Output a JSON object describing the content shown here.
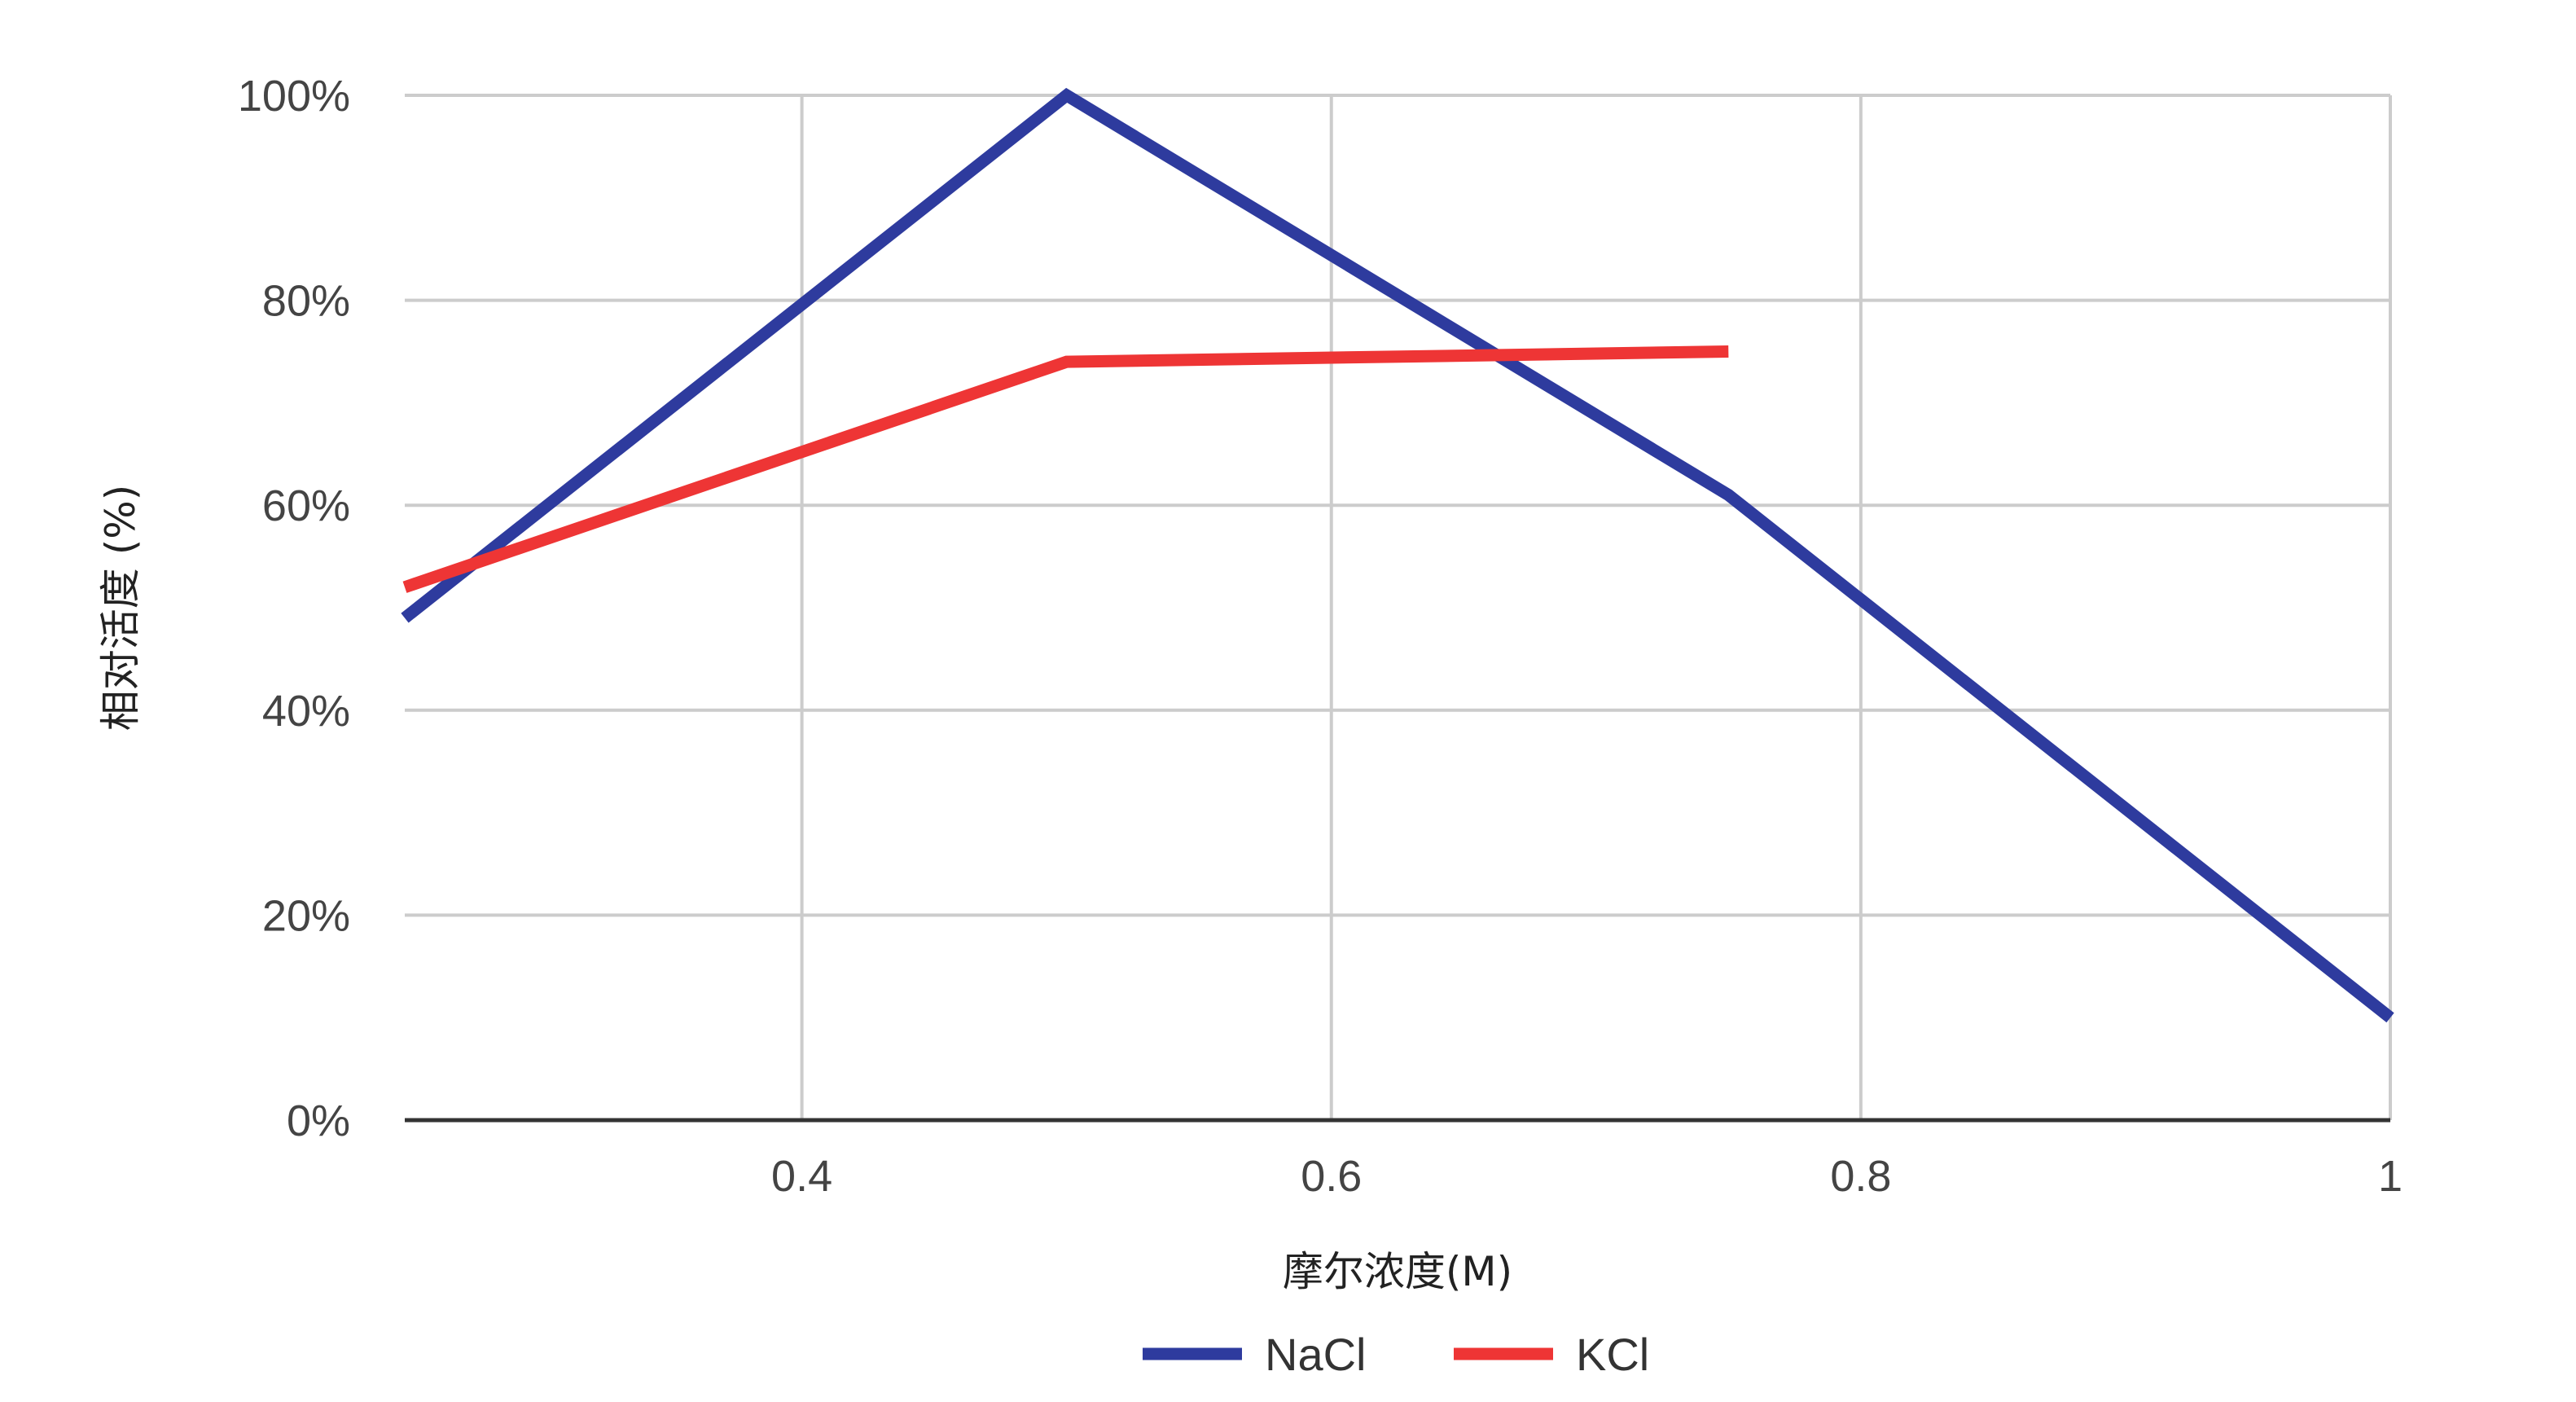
{
  "chart_data": {
    "type": "line",
    "xlabel": "摩尔浓度(M)",
    "ylabel": "相对活度 (%)",
    "xlim": [
      0.25,
      1.0
    ],
    "ylim": [
      0,
      100
    ],
    "x_ticks": [
      0.4,
      0.6,
      0.8,
      1.0
    ],
    "x_tick_labels": [
      "0.4",
      "0.6",
      "0.8",
      "1"
    ],
    "y_ticks": [
      0,
      20,
      40,
      60,
      80,
      100
    ],
    "y_tick_labels": [
      "0%",
      "20%",
      "40%",
      "60%",
      "80%",
      "100%"
    ],
    "grid": true,
    "legend_position": "bottom",
    "series": [
      {
        "name": "NaCl",
        "color": "#2e3b9e",
        "x": [
          0.25,
          0.5,
          0.75,
          1.0
        ],
        "y": [
          49,
          100,
          61,
          10
        ]
      },
      {
        "name": "KCl",
        "color": "#ee3535",
        "x": [
          0.25,
          0.5,
          0.75
        ],
        "y": [
          52,
          74,
          75
        ]
      }
    ]
  }
}
